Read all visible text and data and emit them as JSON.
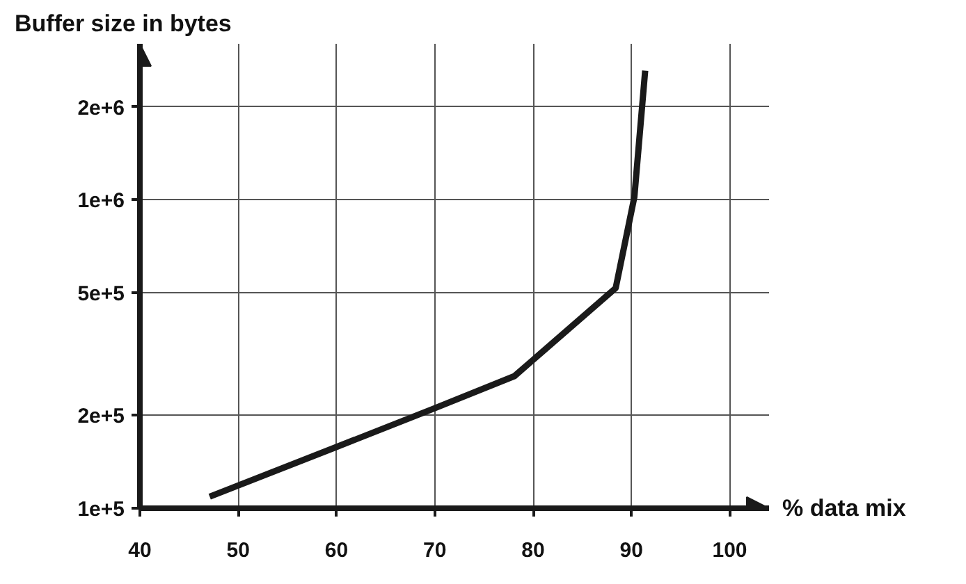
{
  "chart_data": {
    "type": "line",
    "ylabel": "Buffer size in bytes",
    "xlabel": "% data mix",
    "log": "y",
    "grid": true,
    "marker": "none",
    "line_style": "solid",
    "x": [
      47.1,
      59.8,
      70,
      78.1,
      88.4,
      90.3,
      91.4
    ],
    "series": [
      {
        "color": "#1a1a1a",
        "values": [
          109000,
          157000,
          211000,
          268000,
          517000,
          1020000,
          2620000
        ]
      }
    ],
    "xlim": [
      40,
      104
    ],
    "xticks": [
      40,
      50,
      60,
      70,
      80,
      90,
      100
    ],
    "ylim": [
      100000,
      3200000
    ],
    "yticks": [
      {
        "value": 100000,
        "label": "1e+5"
      },
      {
        "value": 200000,
        "label": "2e+5"
      },
      {
        "value": 500000,
        "label": "5e+5"
      },
      {
        "value": 1000000,
        "label": "1e+6"
      },
      {
        "value": 2000000,
        "label": "2e+6"
      }
    ]
  }
}
